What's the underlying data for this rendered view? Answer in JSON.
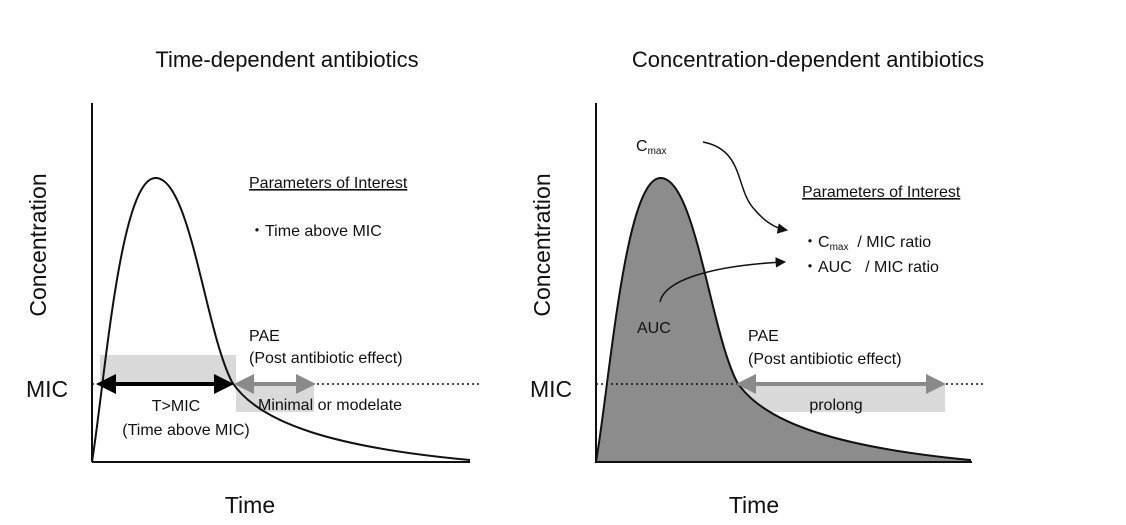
{
  "left_panel": {
    "title": "Time-dependent antibiotics",
    "ylabel": "Concentration",
    "xlabel": "Time",
    "mic_label": "MIC",
    "parameters_heading": "Parameters of Interest",
    "parameter": "・Time above MIC",
    "pae_label": "PAE",
    "pae_full": "(Post antibiotic effect)",
    "t_mic": "T>MIC",
    "t_mic_full": "(Time above MIC)",
    "pae_duration": "Minimal or modelate"
  },
  "right_panel": {
    "title": "Concentration-dependent antibiotics",
    "ylabel": "Concentration",
    "xlabel": "Time",
    "mic_label": "MIC",
    "cmax_c": "C",
    "cmax_sub": "max",
    "parameters_heading": "Parameters of Interest",
    "param1_prefix": "・C",
    "param1_sub": "max",
    "param1_suffix": "  / MIC ratio",
    "param2": "・AUC   / MIC ratio",
    "auc_label": "AUC",
    "pae_label": "PAE",
    "pae_full": "(Post antibiotic effect)",
    "pae_duration": "prolong"
  },
  "colors": {
    "curve": "#111111",
    "auc_fill": "#8c8c8c",
    "highlight_box": "#d9d9d9",
    "pae_arrow": "#8a8a8a",
    "tmic_arrow": "#000000"
  }
}
